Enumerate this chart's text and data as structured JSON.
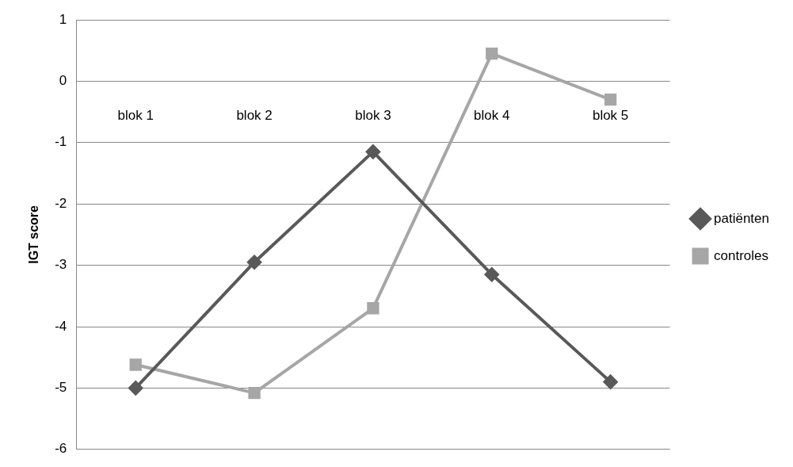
{
  "chart_data": {
    "type": "line",
    "ylabel": "IGT score",
    "categories": [
      "blok 1",
      "blok 2",
      "blok 3",
      "blok 4",
      "blok 5"
    ],
    "series": [
      {
        "name": "patiënten",
        "color": "#595959",
        "marker": "diamond",
        "values": [
          -5.0,
          -2.95,
          -1.15,
          -3.15,
          -4.9
        ]
      },
      {
        "name": "controles",
        "color": "#a6a6a6",
        "marker": "square",
        "values": [
          -4.62,
          -5.08,
          -3.7,
          0.45,
          -0.3
        ]
      }
    ],
    "ylim": [
      -6,
      1
    ],
    "yticks": [
      -6,
      -5,
      -4,
      -3,
      -2,
      -1,
      0,
      1
    ],
    "grid": "y",
    "legend": "right"
  }
}
